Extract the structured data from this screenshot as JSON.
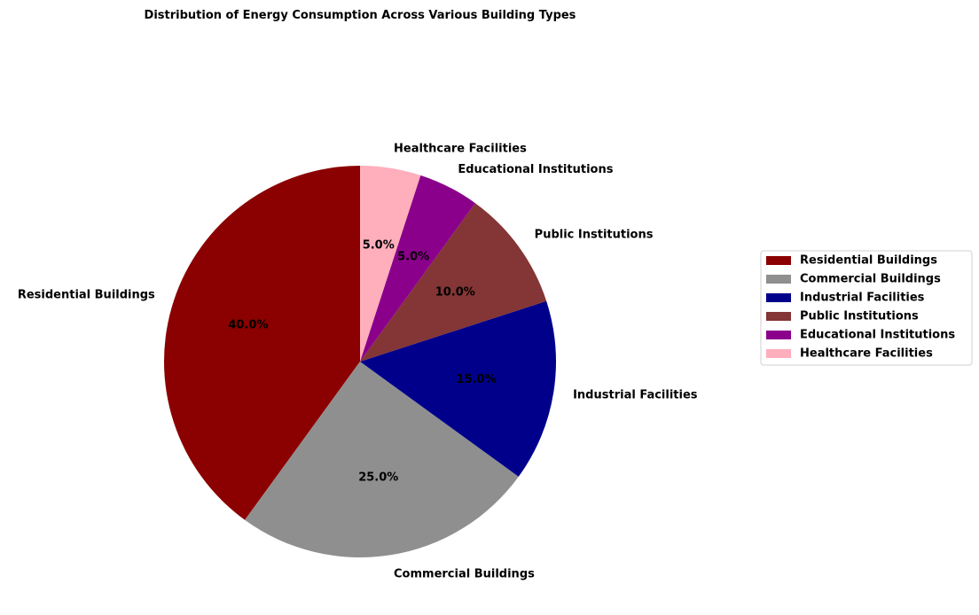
{
  "chart_data": {
    "type": "pie",
    "title": "Distribution of Energy Consumption Across Various Building Types",
    "categories": [
      "Residential Buildings",
      "Commercial Buildings",
      "Industrial Facilities",
      "Public Institutions",
      "Educational Institutions",
      "Healthcare Facilities"
    ],
    "values": [
      40,
      25,
      15,
      10,
      5,
      5
    ],
    "percent_labels": [
      "40.0%",
      "25.0%",
      "15.0%",
      "10.0%",
      "5.0%",
      "5.0%"
    ],
    "colors": [
      "#8b0000",
      "#8f8f8f",
      "#00008b",
      "#843535",
      "#8b008b",
      "#ffaebc"
    ],
    "start_angle_deg": 90,
    "direction": "counterclockwise",
    "legend_position": "right",
    "legend": [
      "Residential Buildings",
      "Commercial Buildings",
      "Industrial Facilities",
      "Public Institutions",
      "Educational Institutions",
      "Healthcare Facilities"
    ]
  }
}
